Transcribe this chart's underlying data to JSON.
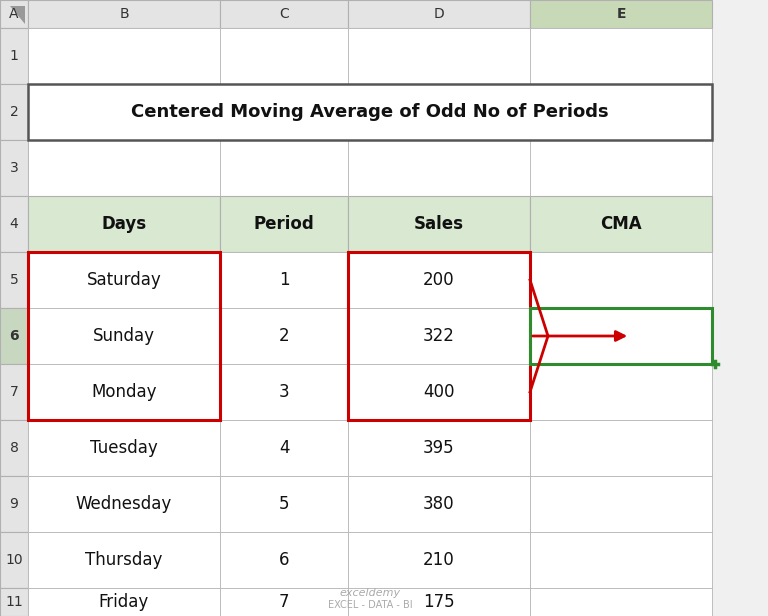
{
  "title": "Centered Moving Average of Odd No of Periods",
  "col_headers": [
    "Days",
    "Period",
    "Sales",
    "CMA"
  ],
  "rows": [
    [
      "Saturday",
      "1",
      "200",
      ""
    ],
    [
      "Sunday",
      "2",
      "322",
      ""
    ],
    [
      "Monday",
      "3",
      "400",
      ""
    ],
    [
      "Tuesday",
      "4",
      "395",
      ""
    ],
    [
      "Wednesday",
      "5",
      "380",
      ""
    ],
    [
      "Thursday",
      "6",
      "210",
      ""
    ],
    [
      "Friday",
      "7",
      "175",
      ""
    ]
  ],
  "header_bg": "#d9e8d0",
  "cell_bg": "#ffffff",
  "col_header_bg": "#e4e4e4",
  "col_header_border": "#b0b0b0",
  "grid_color": "#b0b0b0",
  "title_border_color": "#555555",
  "red_box_color": "#cc0000",
  "green_highlight_color": "#2e8b2e",
  "green_col_header_bg": "#c8d9b8",
  "arrow_color": "#cc0000",
  "bg_color": "#f0f0f0",
  "watermark_line1": "exceldemy",
  "watermark_line2": "EXCEL - DATA - BI",
  "row6_header_bg": "#c8d8c0"
}
